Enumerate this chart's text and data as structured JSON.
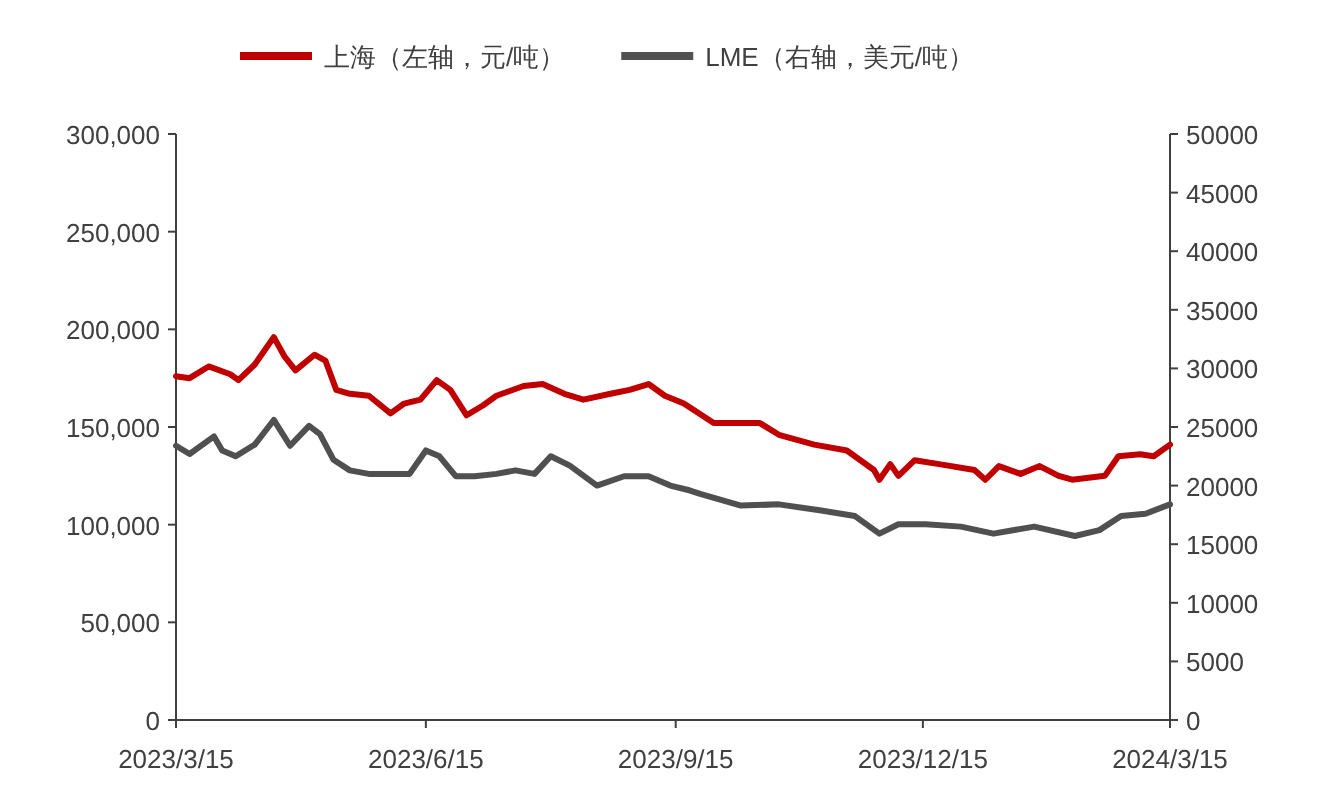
{
  "chart_data": {
    "type": "line",
    "legend": "top",
    "xlim": [
      "2023-03-15",
      "2024-03-15"
    ],
    "xticks": [
      {
        "value": "2023-03-15",
        "label": "2023/3/15"
      },
      {
        "value": "2023-06-15",
        "label": "2023/6/15"
      },
      {
        "value": "2023-09-15",
        "label": "2023/9/15"
      },
      {
        "value": "2023-12-15",
        "label": "2023/12/15"
      },
      {
        "value": "2024-03-15",
        "label": "2024/3/15"
      }
    ],
    "ylim": [
      0,
      300000
    ],
    "yticks": [
      0,
      {
        "value": 50000,
        "label": "50,000"
      },
      {
        "value": 100000,
        "label": "100,000"
      },
      {
        "value": 150000,
        "label": "150,000"
      },
      {
        "value": 200000,
        "label": "200,000"
      },
      {
        "value": 250000,
        "label": "250,000"
      },
      {
        "value": 300000,
        "label": "300,000"
      }
    ],
    "y2lim": [
      0,
      50000
    ],
    "y2ticks": [
      0,
      5000,
      10000,
      15000,
      20000,
      25000,
      30000,
      35000,
      40000,
      45000,
      50000
    ],
    "series": [
      {
        "name": "上海（左轴，元/吨）",
        "color": "#c00000",
        "x": [
          "2023-03-15",
          "2023-03-20",
          "2023-03-27",
          "2023-04-04",
          "2023-04-07",
          "2023-04-13",
          "2023-04-20",
          "2023-04-24",
          "2023-04-28",
          "2023-05-05",
          "2023-05-09",
          "2023-05-13",
          "2023-05-18",
          "2023-05-25",
          "2023-06-02",
          "2023-06-07",
          "2023-06-13",
          "2023-06-19",
          "2023-06-24",
          "2023-06-30",
          "2023-07-06",
          "2023-07-11",
          "2023-07-21",
          "2023-07-28",
          "2023-08-05",
          "2023-08-12",
          "2023-08-22",
          "2023-08-29",
          "2023-09-05",
          "2023-09-11",
          "2023-09-18",
          "2023-09-29",
          "2023-10-16",
          "2023-10-23",
          "2023-11-05",
          "2023-11-17",
          "2023-11-22",
          "2023-11-27",
          "2023-11-29",
          "2023-12-03",
          "2023-12-06",
          "2023-12-12",
          "2023-12-21",
          "2024-01-03",
          "2024-01-07",
          "2024-01-12",
          "2024-01-20",
          "2024-01-27",
          "2024-02-03",
          "2024-02-08",
          "2024-02-20",
          "2024-02-25",
          "2024-03-04",
          "2024-03-09",
          "2024-03-15"
        ],
        "values": [
          176000,
          175000,
          181000,
          177000,
          174000,
          182000,
          196000,
          186000,
          179000,
          187000,
          184000,
          169000,
          167000,
          166000,
          157000,
          162000,
          164000,
          174000,
          169000,
          156000,
          161000,
          166000,
          171000,
          172000,
          167000,
          164000,
          167000,
          169000,
          172000,
          166000,
          162000,
          152000,
          152000,
          146000,
          141000,
          138000,
          133000,
          128000,
          123000,
          131000,
          125000,
          133000,
          131000,
          128000,
          123000,
          130000,
          126000,
          130000,
          125000,
          123000,
          125000,
          135000,
          136000,
          135000,
          141000
        ]
      },
      {
        "name": "LME（右轴，美元/吨）",
        "color": "#505050",
        "axis": "y2",
        "x": [
          "2023-03-15",
          "2023-03-20",
          "2023-03-29",
          "2023-04-01",
          "2023-04-06",
          "2023-04-13",
          "2023-04-20",
          "2023-04-26",
          "2023-05-03",
          "2023-05-07",
          "2023-05-12",
          "2023-05-18",
          "2023-05-25",
          "2023-06-02",
          "2023-06-09",
          "2023-06-15",
          "2023-06-20",
          "2023-06-26",
          "2023-07-03",
          "2023-07-11",
          "2023-07-18",
          "2023-07-25",
          "2023-07-31",
          "2023-08-07",
          "2023-08-17",
          "2023-08-27",
          "2023-09-05",
          "2023-09-13",
          "2023-09-20",
          "2023-09-24",
          "2023-10-09",
          "2023-10-23",
          "2023-11-07",
          "2023-11-20",
          "2023-11-29",
          "2023-12-06",
          "2023-12-16",
          "2023-12-29",
          "2024-01-10",
          "2024-01-25",
          "2024-02-09",
          "2024-02-18",
          "2024-02-26",
          "2024-03-06",
          "2024-03-15"
        ],
        "values": [
          23400,
          22700,
          24200,
          23000,
          22500,
          23500,
          25600,
          23400,
          25100,
          24400,
          22200,
          21300,
          21000,
          21000,
          21000,
          23000,
          22500,
          20800,
          20800,
          21000,
          21300,
          21000,
          22500,
          21700,
          20000,
          20800,
          20800,
          20000,
          19600,
          19300,
          18300,
          18400,
          17900,
          17400,
          15900,
          16700,
          16700,
          16500,
          15900,
          16500,
          15700,
          16200,
          17400,
          17600,
          18400
        ]
      }
    ]
  }
}
